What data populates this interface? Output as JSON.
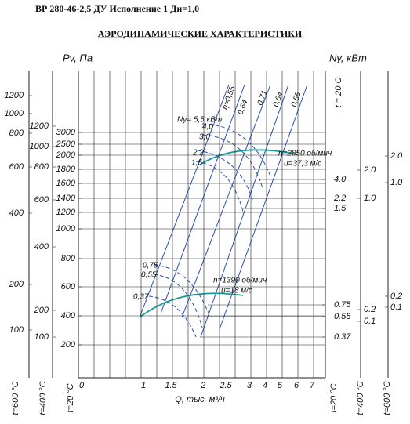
{
  "header": "ВР 280-46-2,5 ДУ Исполнение 1 Дн=1,0",
  "title": "АЭРОДИНАМИЧЕСКИЕ  ХАРАКТЕРИСТИКИ",
  "axis_labels": {
    "pressure": "Pv, Па",
    "power": "Ny, кВт",
    "flow": "Q, тыс. м³/ч",
    "temp_top": "t = 20 C"
  },
  "scales": {
    "pressure_600": {
      "label": "t=600 °С",
      "ticks": [
        "1200",
        "1000",
        "800",
        "600",
        "400",
        "200",
        "100"
      ]
    },
    "pressure_400": {
      "label": "t=400 °С",
      "ticks": [
        "1200",
        "1000",
        "800",
        "600",
        "400",
        "200",
        "100"
      ]
    },
    "pressure_20": {
      "label": "t=20 °С",
      "ticks": [
        "3000",
        "2500",
        "2000",
        "1800",
        "1600",
        "1400",
        "1200",
        "1000",
        "800",
        "600",
        "400",
        "200"
      ]
    },
    "flow": {
      "ticks": [
        "0",
        "1",
        "1.5",
        "2",
        "2.5",
        "3",
        "4",
        "5",
        "6",
        "7"
      ]
    },
    "power_20": {
      "label": "t=20 °С",
      "ticks": [
        "4.0",
        "2.2",
        "1.5",
        "0.75",
        "0.55",
        "0.37"
      ]
    },
    "power_400": {
      "label": "t=400 °С",
      "ticks": [
        "2.0",
        "1.0",
        "0.2",
        "0.1"
      ]
    },
    "power_600": {
      "label": "t=600 °С",
      "ticks": [
        "2.0",
        "1.0",
        "0.2",
        "0.1"
      ]
    }
  },
  "efficiency_labels": [
    "η=0,55",
    "0,64",
    "0,71",
    "0,64",
    "0,55"
  ],
  "high_speed": {
    "power_labels": [
      "Ny= 5,5 кВт",
      "4,0",
      "3,0",
      "2,2",
      "1,5"
    ],
    "speed": "n=2850 об/мин",
    "velocity": "u=37,3 м/с"
  },
  "low_speed": {
    "power_labels": [
      "0,75",
      "0,55",
      "0,37"
    ],
    "speed": "n=1390 об/мин",
    "velocity": "u=18 м/с"
  }
}
